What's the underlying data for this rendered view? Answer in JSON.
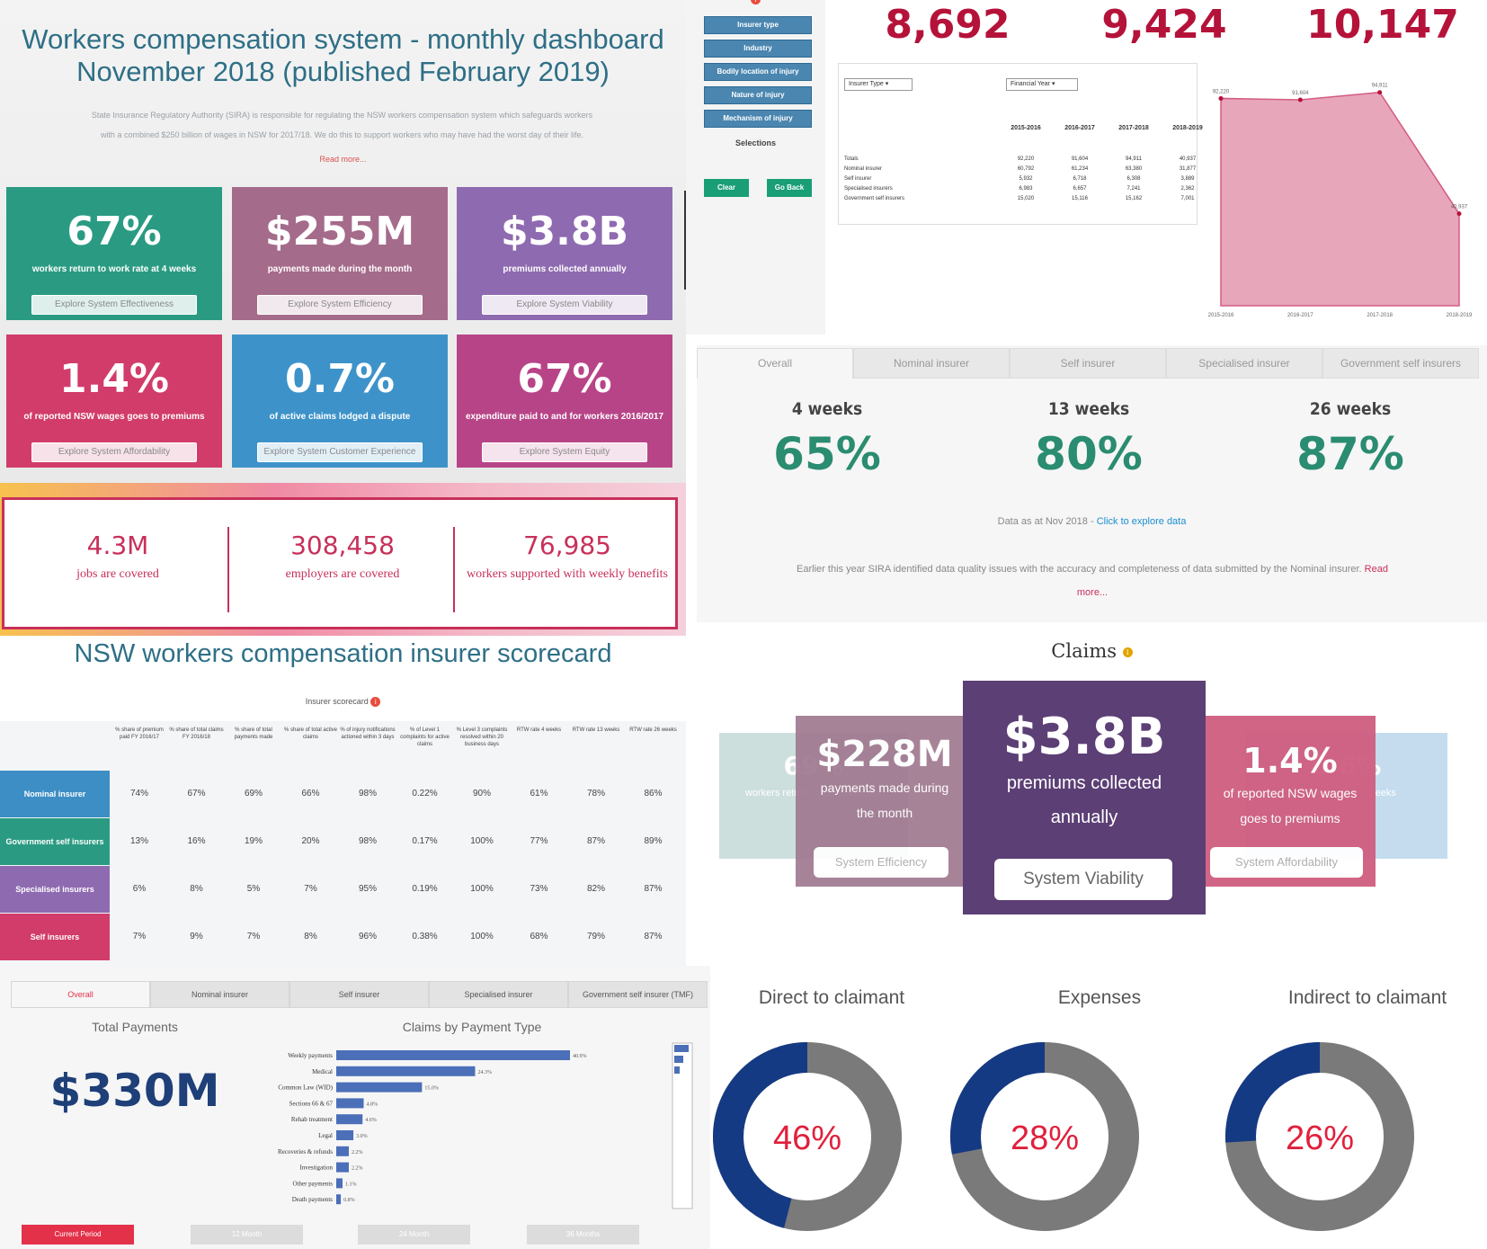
{
  "dashboard": {
    "title_line1": "Workers compensation system - monthly dashboard",
    "title_line2": "November 2018 (published February 2019)",
    "intro_line1": "State Insurance Regulatory Authority (SIRA) is responsible for regulating the NSW workers compensation system which safeguards workers",
    "intro_line2": "with a combined $250 billion of wages in NSW for 2017/18. We do this to support workers who may have had the worst day of their life.",
    "read_more": "Read more...",
    "tiles": [
      {
        "value": "67%",
        "caption": "workers return to work rate at 4 weeks",
        "button": "Explore System Effectiveness",
        "color": "#2a9b82"
      },
      {
        "value": "$255M",
        "caption": "payments made during the month",
        "button": "Explore System Efficiency",
        "color": "#a56b8b"
      },
      {
        "value": "$3.8B",
        "caption": "premiums collected annually",
        "button": "Explore System Viability",
        "color": "#8e6ab0"
      },
      {
        "value": "1.4%",
        "caption": "of reported NSW wages goes to premiums",
        "button": "Explore System Affordability",
        "color": "#d23c6a"
      },
      {
        "value": "0.7%",
        "caption": "of active claims lodged a dispute",
        "button": "Explore System Customer Experience",
        "color": "#3d93c9"
      },
      {
        "value": "67%",
        "caption": "expenditure paid to and for workers 2016/2017",
        "button": "Explore System Equity",
        "color": "#b84488"
      }
    ]
  },
  "coverage": {
    "stats": [
      {
        "value": "4.3M",
        "label": "jobs are covered"
      },
      {
        "value": "308,458",
        "label": "employers are covered"
      },
      {
        "value": "76,985",
        "label": "workers supported with weekly benefits"
      }
    ]
  },
  "scorecard": {
    "title": "NSW workers compensation insurer scorecard",
    "subtitle": "Insurer scorecard",
    "columns": [
      "% share of premium paid FY 2016/17",
      "% share of total claims FY 2016/18",
      "% share of total payments made",
      "% share of total active claims",
      "% of injury notifications actioned within 3 days",
      "% of Level 1 complaints for active claims",
      "% Level 3 complaints resolved within 20 business days",
      "RTW rate 4 weeks",
      "RTW rate 13 weeks",
      "RTW rate 26 weeks"
    ],
    "rows": [
      {
        "name": "Nominal insurer",
        "color": "#3d8ec5",
        "values": [
          "74%",
          "67%",
          "69%",
          "66%",
          "98%",
          "0.22%",
          "90%",
          "61%",
          "78%",
          "86%"
        ]
      },
      {
        "name": "Government self insurers",
        "color": "#2a9b82",
        "values": [
          "13%",
          "16%",
          "19%",
          "20%",
          "98%",
          "0.17%",
          "100%",
          "77%",
          "87%",
          "89%"
        ]
      },
      {
        "name": "Specialised insurers",
        "color": "#8e6ab0",
        "values": [
          "6%",
          "8%",
          "5%",
          "7%",
          "95%",
          "0.19%",
          "100%",
          "73%",
          "82%",
          "87%"
        ]
      },
      {
        "name": "Self insurers",
        "color": "#d23c6a",
        "values": [
          "7%",
          "9%",
          "7%",
          "8%",
          "96%",
          "0.38%",
          "100%",
          "68%",
          "79%",
          "87%"
        ]
      }
    ]
  },
  "filters": {
    "buttons": [
      "Insurer type",
      "Industry",
      "Bodily location of injury",
      "Nature of injury",
      "Mechanism of injury"
    ],
    "selections_label": "Selections",
    "clear_label": "Clear",
    "back_label": "Go Back"
  },
  "claims_totals": {
    "kpis": [
      "8,692",
      "9,424",
      "10,147"
    ],
    "insurer_dropdown": "Insurer Type",
    "year_dropdown": "Financial Year",
    "years": [
      "2015-2016",
      "2016-2017",
      "2017-2018",
      "2018-2019"
    ],
    "rows": [
      {
        "label": "Totals",
        "values": [
          "92,220",
          "91,604",
          "94,911",
          "40,937"
        ]
      },
      {
        "label": "Nominal insurer",
        "values": [
          "60,792",
          "61,234",
          "63,380",
          "31,877"
        ]
      },
      {
        "label": "Self insurer",
        "values": [
          "5,932",
          "6,718",
          "6,308",
          "3,889"
        ]
      },
      {
        "label": "Specialised insurers",
        "values": [
          "6,983",
          "6,657",
          "7,241",
          "2,362"
        ]
      },
      {
        "label": "Government self insurers",
        "values": [
          "15,020",
          "15,116",
          "15,162",
          "7,001"
        ]
      }
    ]
  },
  "chart_data": {
    "type": "area",
    "categories": [
      "2015-2016",
      "2016-2017",
      "2017-2018",
      "2018-2019"
    ],
    "values": [
      92220,
      91604,
      94911,
      40937
    ],
    "data_labels": [
      "92,220",
      "91,604",
      "94,911",
      "40,937"
    ],
    "title": "",
    "xlabel": "",
    "ylabel": "",
    "color": "#e8a6bb"
  },
  "rtw": {
    "tabs": [
      "Overall",
      "Nominal insurer",
      "Self insurer",
      "Specialised insurer",
      "Government self insurers"
    ],
    "metrics": [
      {
        "label": "4 weeks",
        "value": "65%"
      },
      {
        "label": "13 weeks",
        "value": "80%"
      },
      {
        "label": "26 weeks",
        "value": "87%"
      }
    ],
    "as_at": "Data as at Nov 2018 - ",
    "as_at_link": "Click to explore data",
    "note": "Earlier this year SIRA identified data quality issues with the accuracy and completeness of data submitted by the Nominal insurer.",
    "note_more_1": "Read",
    "note_more_2": "more..."
  },
  "claims_cards": {
    "title": "Claims",
    "far_left": {
      "value": "69%",
      "caption": "workers return to work rate at 4"
    },
    "left": {
      "value": "$228M",
      "caption_1": "payments made during",
      "caption_2": "the month",
      "button": "System Efficiency"
    },
    "center": {
      "value": "$3.8B",
      "caption_1": "premiums collected",
      "caption_2": "annually",
      "button": "System Viability"
    },
    "right": {
      "value": "1.4%",
      "caption_1": "of reported NSW wages",
      "caption_2": "goes to premiums",
      "button": "System Affordability"
    },
    "far_right": {
      "value": "0.6%",
      "caption": "return to work 6 weeks"
    }
  },
  "payments": {
    "tabs": [
      "Overall",
      "Nominal insurer",
      "Self insurer",
      "Specialised insurer",
      "Government self insurer (TMF)"
    ],
    "total_label": "Total Payments",
    "total_value": "$330M",
    "chart_title": "Claims by Payment Type",
    "types": [
      {
        "label": "Weekly payments",
        "pct": 40.9,
        "text": "40.9%"
      },
      {
        "label": "Medical",
        "pct": 24.3,
        "text": "24.3%"
      },
      {
        "label": "Common Law (WID)",
        "pct": 15.0,
        "text": "15.0%"
      },
      {
        "label": "Sections 66 & 67",
        "pct": 4.8,
        "text": "4.8%"
      },
      {
        "label": "Rehab treatment",
        "pct": 4.6,
        "text": "4.6%"
      },
      {
        "label": "Legal",
        "pct": 3.0,
        "text": "3.0%"
      },
      {
        "label": "Recoveries & refunds",
        "pct": 2.2,
        "text": "2.2%"
      },
      {
        "label": "Investigation",
        "pct": 2.2,
        "text": "2.2%"
      },
      {
        "label": "Other payments",
        "pct": 1.1,
        "text": "1.1%"
      },
      {
        "label": "Death payments",
        "pct": 0.8,
        "text": "0.8%"
      }
    ],
    "periods": [
      "Current Period",
      "12 Month",
      "24 Month",
      "36 Months"
    ]
  },
  "donuts": [
    {
      "label": "Direct to claimant",
      "pct": 46,
      "text": "46%"
    },
    {
      "label": "Expenses",
      "pct": 28,
      "text": "28%"
    },
    {
      "label": "Indirect to claimant",
      "pct": 26,
      "text": "26%"
    }
  ],
  "donut_colors": {
    "fill": "#153a84",
    "rest": "#7a7a7a",
    "text": "#e0203c"
  }
}
